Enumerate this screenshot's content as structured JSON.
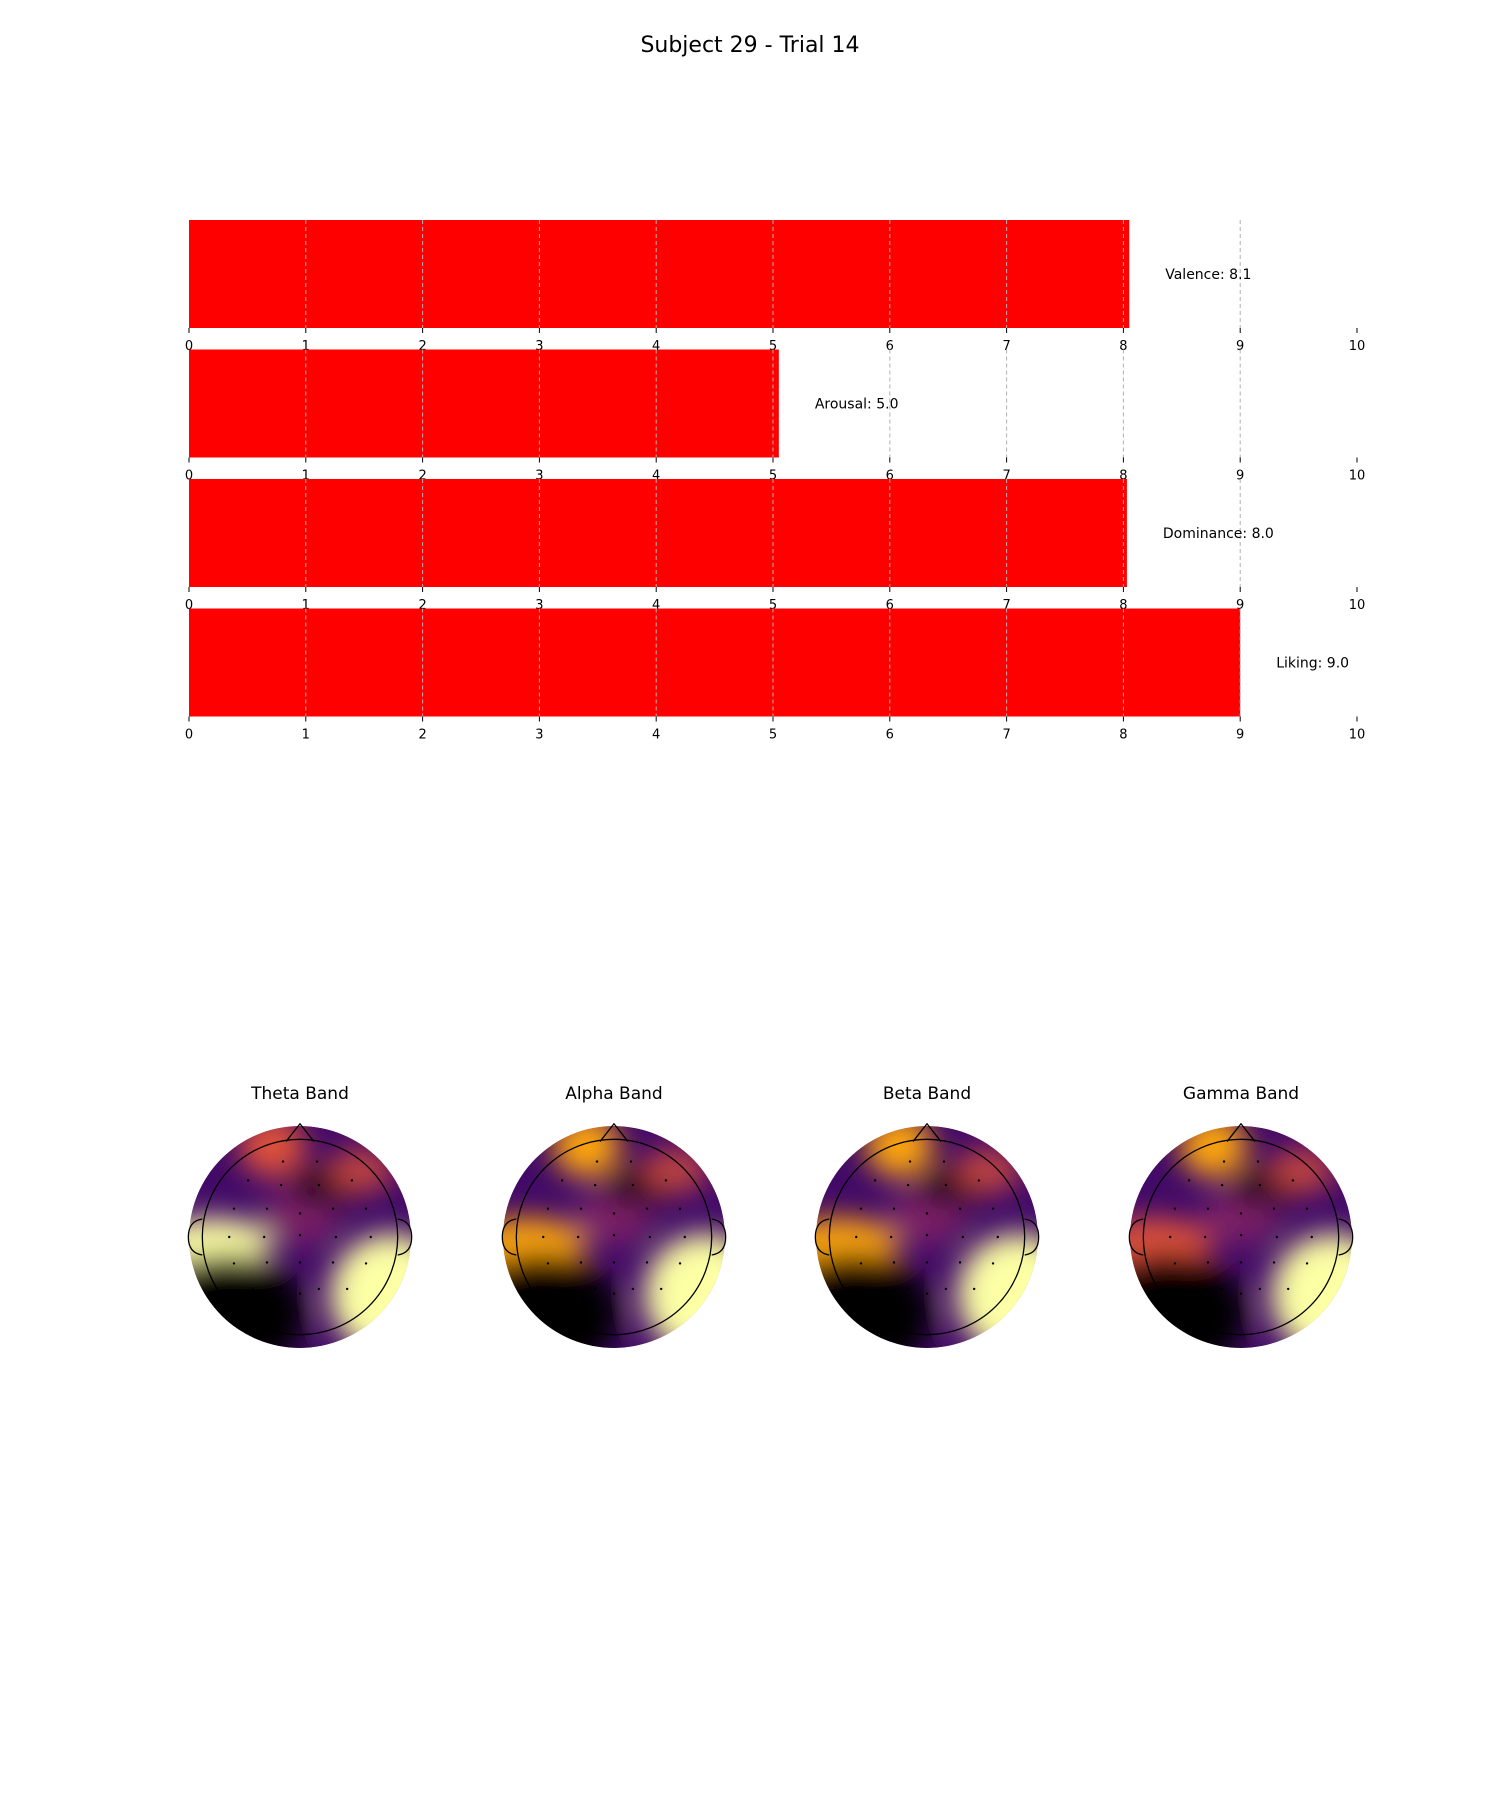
{
  "figure": {
    "title": "Subject 29 - Trial 14"
  },
  "chart_data": [
    {
      "type": "bar",
      "orientation": "horizontal",
      "categories": [
        "Valence",
        "Arousal",
        "Dominance",
        "Liking"
      ],
      "values": [
        8.05,
        5.05,
        8.03,
        9.0
      ],
      "value_labels": [
        "Valence: 8.1",
        "Arousal: 5.0",
        "Dominance: 8.0",
        "Liking: 9.0"
      ],
      "bar_color": "#ff0000",
      "xlim": [
        0,
        10
      ],
      "xticks": [
        "0",
        "1",
        "2",
        "3",
        "4",
        "5",
        "6",
        "7",
        "8",
        "9",
        "10"
      ],
      "grid": "vertical dashed",
      "title": "",
      "xlabel": "",
      "ylabel": ""
    },
    {
      "type": "heatmap",
      "subtype": "scalp topography",
      "colormap": "inferno",
      "colormap_stops": [
        "#000004",
        "#420a68",
        "#932667",
        "#dd513a",
        "#fca50a",
        "#fcffa4"
      ],
      "maps": [
        {
          "title": "Theta Band",
          "hotspots": [
            {
              "lobe": "left-temporal",
              "level": 0.95
            },
            {
              "lobe": "right-parietal",
              "level": 1.0
            },
            {
              "lobe": "left-frontal-pole",
              "level": 0.6
            },
            {
              "lobe": "left-occipital",
              "level": 0.0
            }
          ]
        },
        {
          "title": "Alpha Band",
          "hotspots": [
            {
              "lobe": "right-parietal",
              "level": 1.0
            },
            {
              "lobe": "left-frontal-pole",
              "level": 0.85
            },
            {
              "lobe": "left-temporal",
              "level": 0.7
            },
            {
              "lobe": "left-occipital",
              "level": 0.0
            }
          ]
        },
        {
          "title": "Beta Band",
          "hotspots": [
            {
              "lobe": "right-parietal",
              "level": 1.0
            },
            {
              "lobe": "left-frontal-pole",
              "level": 0.8
            },
            {
              "lobe": "left-temporal",
              "level": 0.7
            },
            {
              "lobe": "left-occipital",
              "level": 0.0
            }
          ]
        },
        {
          "title": "Gamma Band",
          "hotspots": [
            {
              "lobe": "right-parietal",
              "level": 1.0
            },
            {
              "lobe": "left-frontal-pole",
              "level": 0.85
            },
            {
              "lobe": "left-temporal",
              "level": 0.6
            },
            {
              "lobe": "left-occipital",
              "level": 0.0
            }
          ]
        }
      ]
    }
  ]
}
